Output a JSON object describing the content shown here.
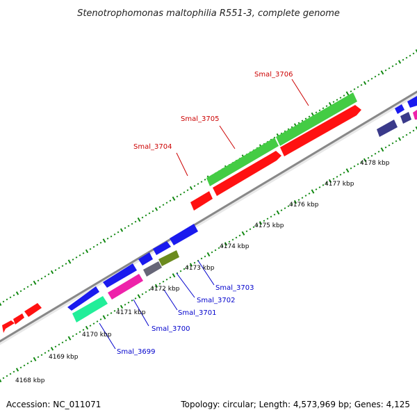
{
  "header": {
    "title": "Stenotrophomonas maltophilia R551-3, complete genome"
  },
  "footer": {
    "accession": "Accession: NC_011071",
    "summary": "Topology: circular; Length: 4,573,969 bp; Genes: 4,125"
  },
  "colors": {
    "strand_forward_label": "#cc0000",
    "strand_reverse_label": "#0000cc",
    "backbone": "#888888",
    "tick_outer": "#118811",
    "tick_inner": "#118811"
  },
  "kbp_ticks": [
    "4168 kbp",
    "4169 kbp",
    "4170 kbp",
    "4171 kbp",
    "4172 kbp",
    "4173 kbp",
    "4174 kbp",
    "4175 kbp",
    "4176 kbp",
    "4177 kbp",
    "4178 kbp"
  ],
  "gene_labels": [
    {
      "text": "Smal_3704",
      "strand": "forward"
    },
    {
      "text": "Smal_3705",
      "strand": "forward"
    },
    {
      "text": "Smal_3706",
      "strand": "forward"
    },
    {
      "text": "Smal_3699",
      "strand": "reverse"
    },
    {
      "text": "Smal_3700",
      "strand": "reverse"
    },
    {
      "text": "Smal_3701",
      "strand": "reverse"
    },
    {
      "text": "Smal_3702",
      "strand": "reverse"
    },
    {
      "text": "Smal_3703",
      "strand": "reverse"
    }
  ],
  "gene_colors": {
    "green": "#44cc44",
    "red": "#ff1111",
    "blue": "#1a1aee",
    "magenta": "#ee22aa",
    "teal": "#22ee99",
    "gray": "#666677",
    "olive": "#6b8a1e",
    "navy": "#3a3a8a"
  }
}
